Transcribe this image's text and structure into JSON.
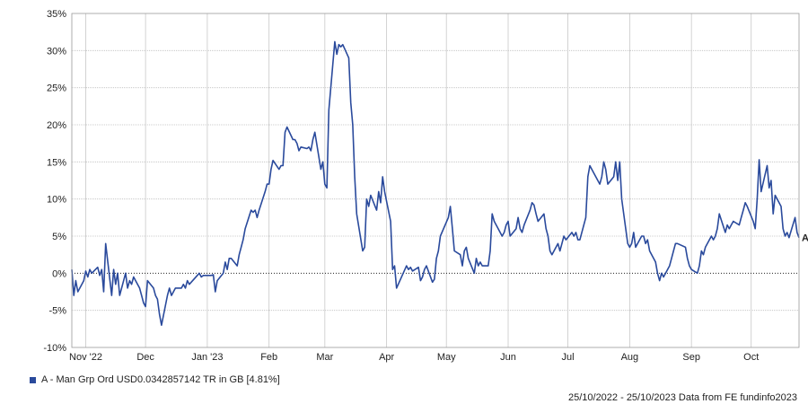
{
  "chart_data": {
    "type": "line",
    "title": "",
    "xlabel": "",
    "ylabel": "",
    "ylim": [
      -10,
      35
    ],
    "y_ticks": [
      -10,
      -5,
      0,
      5,
      10,
      15,
      20,
      25,
      30,
      35
    ],
    "y_tick_labels": [
      "-10%",
      "-5%",
      "0%",
      "5%",
      "10%",
      "15%",
      "20%",
      "25%",
      "30%",
      "35%"
    ],
    "x_range": [
      "2022-10-25",
      "2023-10-25"
    ],
    "x_ticks": [
      {
        "date": "2022-11-01",
        "label": "Nov '22"
      },
      {
        "date": "2022-12-01",
        "label": "Dec"
      },
      {
        "date": "2023-01-01",
        "label": "Jan '23"
      },
      {
        "date": "2023-02-01",
        "label": "Feb"
      },
      {
        "date": "2023-03-01",
        "label": "Mar"
      },
      {
        "date": "2023-04-01",
        "label": "Apr"
      },
      {
        "date": "2023-05-01",
        "label": "May"
      },
      {
        "date": "2023-06-01",
        "label": "Jun"
      },
      {
        "date": "2023-07-01",
        "label": "Jul"
      },
      {
        "date": "2023-08-01",
        "label": "Aug"
      },
      {
        "date": "2023-09-01",
        "label": "Sep"
      },
      {
        "date": "2023-10-01",
        "label": "Oct"
      }
    ],
    "grid": true,
    "zero_line": "dotted",
    "legend_position": "bottom-left",
    "series": [
      {
        "name": "A - Man Grp Ord USD0.0342857142 TR in GB [4.81%]",
        "end_label": "A",
        "color": "#2a4a9c",
        "points": [
          [
            "2022-10-25",
            0.5
          ],
          [
            "2022-10-26",
            -3
          ],
          [
            "2022-10-27",
            -1
          ],
          [
            "2022-10-28",
            -2.5
          ],
          [
            "2022-10-31",
            -1
          ],
          [
            "2022-11-01",
            0.3
          ],
          [
            "2022-11-02",
            -0.5
          ],
          [
            "2022-11-03",
            0.5
          ],
          [
            "2022-11-04",
            0
          ],
          [
            "2022-11-07",
            0.8
          ],
          [
            "2022-11-08",
            -0.3
          ],
          [
            "2022-11-09",
            0.5
          ],
          [
            "2022-11-10",
            -2.5
          ],
          [
            "2022-11-11",
            4
          ],
          [
            "2022-11-14",
            -3
          ],
          [
            "2022-11-15",
            0.5
          ],
          [
            "2022-11-16",
            -1.5
          ],
          [
            "2022-11-17",
            0
          ],
          [
            "2022-11-18",
            -3
          ],
          [
            "2022-11-21",
            0
          ],
          [
            "2022-11-22",
            -2
          ],
          [
            "2022-11-23",
            -1
          ],
          [
            "2022-11-24",
            -1.5
          ],
          [
            "2022-11-25",
            -0.5
          ],
          [
            "2022-11-28",
            -2
          ],
          [
            "2022-11-29",
            -3
          ],
          [
            "2022-11-30",
            -4
          ],
          [
            "2022-12-01",
            -4.5
          ],
          [
            "2022-12-02",
            -1
          ],
          [
            "2022-12-05",
            -2
          ],
          [
            "2022-12-06",
            -3
          ],
          [
            "2022-12-07",
            -3.5
          ],
          [
            "2022-12-08",
            -5.5
          ],
          [
            "2022-12-09",
            -7
          ],
          [
            "2022-12-12",
            -3
          ],
          [
            "2022-12-13",
            -2
          ],
          [
            "2022-12-14",
            -3
          ],
          [
            "2022-12-15",
            -2.5
          ],
          [
            "2022-12-16",
            -2
          ],
          [
            "2022-12-19",
            -2
          ],
          [
            "2022-12-20",
            -1.5
          ],
          [
            "2022-12-21",
            -2
          ],
          [
            "2022-12-22",
            -1
          ],
          [
            "2022-12-23",
            -1.5
          ],
          [
            "2022-12-28",
            0
          ],
          [
            "2022-12-29",
            -0.5
          ],
          [
            "2022-12-30",
            -0.3
          ],
          [
            "2023-01-03",
            -0.3
          ],
          [
            "2023-01-04",
            -0.2
          ],
          [
            "2023-01-05",
            -2.5
          ],
          [
            "2023-01-06",
            -1
          ],
          [
            "2023-01-09",
            0
          ],
          [
            "2023-01-10",
            1.5
          ],
          [
            "2023-01-11",
            0.5
          ],
          [
            "2023-01-12",
            2
          ],
          [
            "2023-01-13",
            2
          ],
          [
            "2023-01-16",
            1
          ],
          [
            "2023-01-17",
            2.5
          ],
          [
            "2023-01-18",
            3.5
          ],
          [
            "2023-01-19",
            4.5
          ],
          [
            "2023-01-20",
            6
          ],
          [
            "2023-01-23",
            8.5
          ],
          [
            "2023-01-24",
            8.2
          ],
          [
            "2023-01-25",
            8.5
          ],
          [
            "2023-01-26",
            7.5
          ],
          [
            "2023-01-27",
            8.5
          ],
          [
            "2023-01-30",
            11
          ],
          [
            "2023-01-31",
            12
          ],
          [
            "2023-02-01",
            12
          ],
          [
            "2023-02-02",
            14
          ],
          [
            "2023-02-03",
            15.2
          ],
          [
            "2023-02-06",
            14
          ],
          [
            "2023-02-07",
            14.5
          ],
          [
            "2023-02-08",
            14.5
          ],
          [
            "2023-02-09",
            19
          ],
          [
            "2023-02-10",
            19.7
          ],
          [
            "2023-02-13",
            18
          ],
          [
            "2023-02-14",
            18
          ],
          [
            "2023-02-15",
            17.5
          ],
          [
            "2023-02-16",
            16.5
          ],
          [
            "2023-02-17",
            17
          ],
          [
            "2023-02-20",
            16.8
          ],
          [
            "2023-02-21",
            17
          ],
          [
            "2023-02-22",
            16.5
          ],
          [
            "2023-02-23",
            18
          ],
          [
            "2023-02-24",
            19
          ],
          [
            "2023-02-27",
            14
          ],
          [
            "2023-02-28",
            15
          ],
          [
            "2023-03-01",
            12
          ],
          [
            "2023-03-02",
            11.5
          ],
          [
            "2023-03-03",
            22
          ],
          [
            "2023-03-06",
            31.2
          ],
          [
            "2023-03-07",
            29.5
          ],
          [
            "2023-03-08",
            30.8
          ],
          [
            "2023-03-09",
            30.5
          ],
          [
            "2023-03-10",
            30.8
          ],
          [
            "2023-03-13",
            29
          ],
          [
            "2023-03-14",
            23
          ],
          [
            "2023-03-15",
            20
          ],
          [
            "2023-03-16",
            13
          ],
          [
            "2023-03-17",
            8
          ],
          [
            "2023-03-20",
            3
          ],
          [
            "2023-03-21",
            3.5
          ],
          [
            "2023-03-22",
            10
          ],
          [
            "2023-03-23",
            9
          ],
          [
            "2023-03-24",
            10.5
          ],
          [
            "2023-03-27",
            8.5
          ],
          [
            "2023-03-28",
            11
          ],
          [
            "2023-03-29",
            9.5
          ],
          [
            "2023-03-30",
            13
          ],
          [
            "2023-03-31",
            11
          ],
          [
            "2023-04-03",
            7
          ],
          [
            "2023-04-04",
            0.5
          ],
          [
            "2023-04-05",
            1
          ],
          [
            "2023-04-06",
            -2
          ],
          [
            "2023-04-11",
            1
          ],
          [
            "2023-04-12",
            0.5
          ],
          [
            "2023-04-13",
            0.8
          ],
          [
            "2023-04-14",
            0.3
          ],
          [
            "2023-04-17",
            0.8
          ],
          [
            "2023-04-18",
            -1
          ],
          [
            "2023-04-19",
            -0.5
          ],
          [
            "2023-04-20",
            0.5
          ],
          [
            "2023-04-21",
            1
          ],
          [
            "2023-04-24",
            -1.2
          ],
          [
            "2023-04-25",
            -0.8
          ],
          [
            "2023-04-26",
            2
          ],
          [
            "2023-04-27",
            3
          ],
          [
            "2023-04-28",
            5
          ],
          [
            "2023-05-02",
            7.5
          ],
          [
            "2023-05-03",
            9
          ],
          [
            "2023-05-04",
            6
          ],
          [
            "2023-05-05",
            3
          ],
          [
            "2023-05-08",
            2.5
          ],
          [
            "2023-05-09",
            1
          ],
          [
            "2023-05-10",
            3
          ],
          [
            "2023-05-11",
            3.5
          ],
          [
            "2023-05-12",
            2
          ],
          [
            "2023-05-15",
            0
          ],
          [
            "2023-05-16",
            2
          ],
          [
            "2023-05-17",
            1
          ],
          [
            "2023-05-18",
            1.5
          ],
          [
            "2023-05-19",
            1
          ],
          [
            "2023-05-22",
            1
          ],
          [
            "2023-05-23",
            3
          ],
          [
            "2023-05-24",
            8
          ],
          [
            "2023-05-25",
            7
          ],
          [
            "2023-05-26",
            6.5
          ],
          [
            "2023-05-29",
            5
          ],
          [
            "2023-05-30",
            5.5
          ],
          [
            "2023-05-31",
            6.5
          ],
          [
            "2023-06-01",
            7
          ],
          [
            "2023-06-02",
            5
          ],
          [
            "2023-06-05",
            6
          ],
          [
            "2023-06-06",
            7.5
          ],
          [
            "2023-06-07",
            6
          ],
          [
            "2023-06-08",
            5.5
          ],
          [
            "2023-06-09",
            6.5
          ],
          [
            "2023-06-12",
            8.5
          ],
          [
            "2023-06-13",
            9.5
          ],
          [
            "2023-06-14",
            9.2
          ],
          [
            "2023-06-15",
            8
          ],
          [
            "2023-06-16",
            7
          ],
          [
            "2023-06-19",
            8
          ],
          [
            "2023-06-20",
            6
          ],
          [
            "2023-06-21",
            5
          ],
          [
            "2023-06-22",
            3
          ],
          [
            "2023-06-23",
            2.5
          ],
          [
            "2023-06-26",
            4
          ],
          [
            "2023-06-27",
            3
          ],
          [
            "2023-06-28",
            4
          ],
          [
            "2023-06-29",
            5
          ],
          [
            "2023-06-30",
            4.5
          ],
          [
            "2023-07-03",
            5.5
          ],
          [
            "2023-07-04",
            5
          ],
          [
            "2023-07-05",
            5.5
          ],
          [
            "2023-07-06",
            4.5
          ],
          [
            "2023-07-07",
            4.5
          ],
          [
            "2023-07-10",
            7.5
          ],
          [
            "2023-07-11",
            13
          ],
          [
            "2023-07-12",
            14.5
          ],
          [
            "2023-07-13",
            14
          ],
          [
            "2023-07-14",
            13.5
          ],
          [
            "2023-07-17",
            12
          ],
          [
            "2023-07-18",
            13
          ],
          [
            "2023-07-19",
            15
          ],
          [
            "2023-07-20",
            14
          ],
          [
            "2023-07-21",
            12
          ],
          [
            "2023-07-24",
            13
          ],
          [
            "2023-07-25",
            15
          ],
          [
            "2023-07-26",
            12.5
          ],
          [
            "2023-07-27",
            15
          ],
          [
            "2023-07-28",
            10
          ],
          [
            "2023-07-31",
            4
          ],
          [
            "2023-08-01",
            3.5
          ],
          [
            "2023-08-02",
            4
          ],
          [
            "2023-08-03",
            5.5
          ],
          [
            "2023-08-04",
            3.5
          ],
          [
            "2023-08-07",
            5
          ],
          [
            "2023-08-08",
            5
          ],
          [
            "2023-08-09",
            4
          ],
          [
            "2023-08-10",
            4.5
          ],
          [
            "2023-08-11",
            3
          ],
          [
            "2023-08-14",
            1.5
          ],
          [
            "2023-08-15",
            0
          ],
          [
            "2023-08-16",
            -1
          ],
          [
            "2023-08-17",
            0
          ],
          [
            "2023-08-18",
            -0.5
          ],
          [
            "2023-08-21",
            1
          ],
          [
            "2023-08-22",
            2
          ],
          [
            "2023-08-23",
            3
          ],
          [
            "2023-08-24",
            4
          ],
          [
            "2023-08-25",
            4
          ],
          [
            "2023-08-29",
            3.5
          ],
          [
            "2023-08-30",
            2
          ],
          [
            "2023-08-31",
            1
          ],
          [
            "2023-09-01",
            0.5
          ],
          [
            "2023-09-04",
            0
          ],
          [
            "2023-09-05",
            1
          ],
          [
            "2023-09-06",
            3
          ],
          [
            "2023-09-07",
            2.5
          ],
          [
            "2023-09-08",
            3.5
          ],
          [
            "2023-09-11",
            5
          ],
          [
            "2023-09-12",
            4.5
          ],
          [
            "2023-09-13",
            5
          ],
          [
            "2023-09-14",
            6
          ],
          [
            "2023-09-15",
            8
          ],
          [
            "2023-09-18",
            5.5
          ],
          [
            "2023-09-19",
            6.5
          ],
          [
            "2023-09-20",
            6
          ],
          [
            "2023-09-21",
            6.5
          ],
          [
            "2023-09-22",
            7
          ],
          [
            "2023-09-25",
            6.5
          ],
          [
            "2023-09-26",
            7.5
          ],
          [
            "2023-09-27",
            8.5
          ],
          [
            "2023-09-28",
            9.5
          ],
          [
            "2023-09-29",
            9
          ],
          [
            "2023-10-02",
            7
          ],
          [
            "2023-10-03",
            6
          ],
          [
            "2023-10-04",
            10
          ],
          [
            "2023-10-05",
            15.3
          ],
          [
            "2023-10-06",
            11
          ],
          [
            "2023-10-09",
            14.5
          ],
          [
            "2023-10-10",
            11.5
          ],
          [
            "2023-10-11",
            12.5
          ],
          [
            "2023-10-12",
            8
          ],
          [
            "2023-10-13",
            10.5
          ],
          [
            "2023-10-16",
            9
          ],
          [
            "2023-10-17",
            6
          ],
          [
            "2023-10-18",
            5
          ],
          [
            "2023-10-19",
            5.5
          ],
          [
            "2023-10-20",
            4.8
          ],
          [
            "2023-10-23",
            7.5
          ],
          [
            "2023-10-24",
            5.5
          ],
          [
            "2023-10-25",
            4.8
          ]
        ]
      }
    ],
    "footer": "25/10/2022 - 25/10/2023 Data from FE fundinfo2023"
  }
}
